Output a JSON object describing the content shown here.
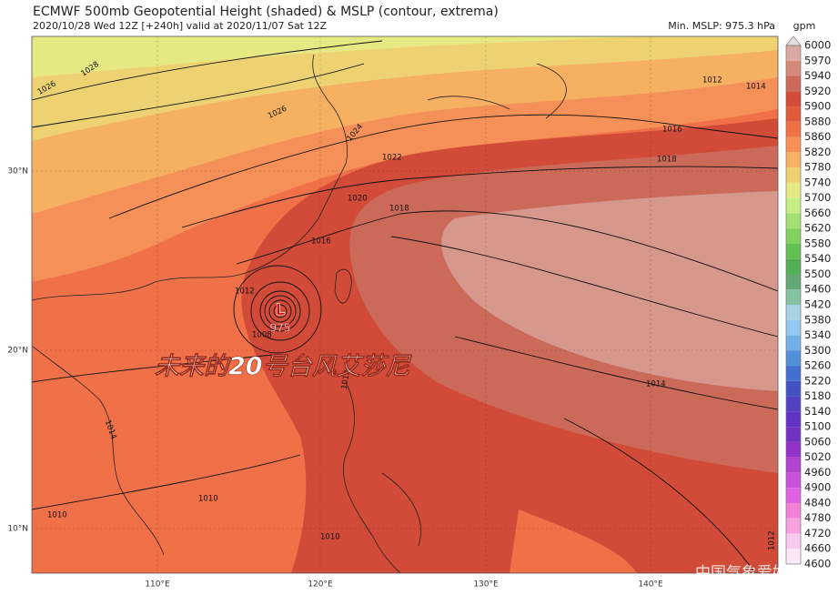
{
  "header": {
    "title": "ECMWF 500mb Geopotential Height (shaded) & MSLP (contour, extrema)",
    "subtitle": "2020/10/28 Wed 12Z [+240h] valid at 2020/11/07 Sat 12Z",
    "min_mslp": "Min. MSLP: 975.3 hPa"
  },
  "colorbar": {
    "unit": "gpm",
    "levels": [
      {
        "label": "6000",
        "color": "#e4dede"
      },
      {
        "label": "5970",
        "color": "#dcaaa2"
      },
      {
        "label": "5940",
        "color": "#d48878"
      },
      {
        "label": "5920",
        "color": "#cc6a5a"
      },
      {
        "label": "5900",
        "color": "#d24a38"
      },
      {
        "label": "5880",
        "color": "#e25a3c"
      },
      {
        "label": "5860",
        "color": "#f07048"
      },
      {
        "label": "5820",
        "color": "#f59058"
      },
      {
        "label": "5780",
        "color": "#f5b062"
      },
      {
        "label": "5740",
        "color": "#eed272"
      },
      {
        "label": "5700",
        "color": "#e6e882"
      },
      {
        "label": "5660",
        "color": "#c6ee86"
      },
      {
        "label": "5620",
        "color": "#a2e074"
      },
      {
        "label": "5580",
        "color": "#82d062"
      },
      {
        "label": "5540",
        "color": "#62c052"
      },
      {
        "label": "5500",
        "color": "#52b052"
      },
      {
        "label": "5460",
        "color": "#62a874"
      },
      {
        "label": "5420",
        "color": "#84c2a2"
      },
      {
        "label": "5380",
        "color": "#a6d2e2"
      },
      {
        "label": "5340",
        "color": "#92c8f0"
      },
      {
        "label": "5300",
        "color": "#72b0e8"
      },
      {
        "label": "5260",
        "color": "#5290d8"
      },
      {
        "label": "5220",
        "color": "#4270d0"
      },
      {
        "label": "5180",
        "color": "#4252c2"
      },
      {
        "label": "5140",
        "color": "#5242c2"
      },
      {
        "label": "5100",
        "color": "#6232c2"
      },
      {
        "label": "5060",
        "color": "#7232c2"
      },
      {
        "label": "5020",
        "color": "#9232c8"
      },
      {
        "label": "4960",
        "color": "#b242d0"
      },
      {
        "label": "4900",
        "color": "#c852d8"
      },
      {
        "label": "4840",
        "color": "#e062e0"
      },
      {
        "label": "4780",
        "color": "#f282d8"
      },
      {
        "label": "4720",
        "color": "#f8a2e2"
      },
      {
        "label": "4660",
        "color": "#f8caf0"
      },
      {
        "label": "4600",
        "color": "#fde8fa"
      }
    ]
  },
  "axes": {
    "latitudes": [
      "30°N",
      "20°N",
      "10°N"
    ],
    "longitudes": [
      "110°E",
      "120°E",
      "130°E",
      "140°E"
    ]
  },
  "map": {
    "low_marker": "L",
    "low_value": "975",
    "overlay_text": "未来的20号台风艾莎尼",
    "watermark": "中国气象爱好者",
    "contour_labels": [
      "1028",
      "1026",
      "1026",
      "1024",
      "1022",
      "1020",
      "1018",
      "1016",
      "1016",
      "1018",
      "1012",
      "1014",
      "1012",
      "1008",
      "1012",
      "1014",
      "1010",
      "1010",
      "1010",
      "1012",
      "1014"
    ]
  }
}
